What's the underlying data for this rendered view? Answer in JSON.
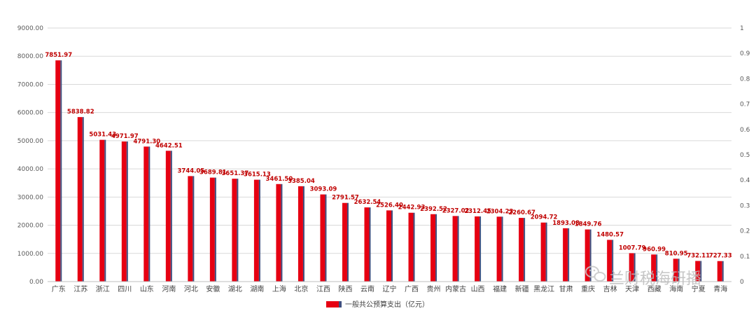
{
  "chart_data": {
    "type": "bar",
    "categories": [
      "广东",
      "江苏",
      "浙江",
      "四川",
      "山东",
      "河南",
      "河北",
      "安徽",
      "湖北",
      "湖南",
      "上海",
      "北京",
      "江西",
      "陕西",
      "云南",
      "辽宁",
      "广西",
      "贵州",
      "内蒙古",
      "山西",
      "福建",
      "新疆",
      "黑龙江",
      "甘肃",
      "重庆",
      "吉林",
      "天津",
      "西藏",
      "海南",
      "宁夏",
      "青海"
    ],
    "series": [
      {
        "name": "一般共公预算支出（亿元）",
        "values": [
          7851.97,
          5838.82,
          5031.43,
          4971.97,
          4791.3,
          4642.51,
          3744.05,
          3689.81,
          3651.37,
          3615.13,
          3461.5,
          3385.04,
          3093.09,
          2791.57,
          2632.54,
          2526.4,
          2442.93,
          2392.52,
          2327.02,
          2312.45,
          2304.23,
          2260.67,
          2094.72,
          1893.08,
          1849.76,
          1480.57,
          1007.79,
          960.99,
          810.95,
          732.11,
          727.33
        ]
      }
    ],
    "value_labels": [
      "7851.97",
      "5838.82",
      "5031.43",
      "4971.97",
      "4791.30",
      "4642.51",
      "3744.05",
      "3689.81",
      "3651.37",
      "3615.13",
      "3461.50",
      "3385.04",
      "3093.09",
      "2791.57",
      "2632.54",
      "2526.40",
      "2442.93",
      "2392.52",
      "2327.02",
      "2312.45",
      "2304.23",
      "2260.67",
      "2094.72",
      "1893.08",
      "1849.76",
      "1480.57",
      "1007.79",
      "960.99",
      "810.95",
      "732.11",
      "727.33"
    ],
    "ylim": [
      0,
      9000
    ],
    "yticks": [
      "0.00",
      "1000.00",
      "2000.00",
      "3000.00",
      "4000.00",
      "5000.00",
      "6000.00",
      "7000.00",
      "8000.00",
      "9000.00"
    ],
    "y2lim": [
      0,
      1
    ],
    "y2ticks": [
      "0",
      "0.1",
      "0.2",
      "0.3",
      "0.4",
      "0.5",
      "0.6",
      "0.7",
      "0.8",
      "0.9",
      "1"
    ],
    "grid": true,
    "legend_position": "bottom",
    "colors": {
      "bar_face": "#e60012",
      "bar_side": "#3f4f7f",
      "label": "#c00000",
      "grid": "#d9d9d9"
    }
  },
  "watermark": {
    "icon": "wechat-icon",
    "text": "兰财税海研播"
  }
}
